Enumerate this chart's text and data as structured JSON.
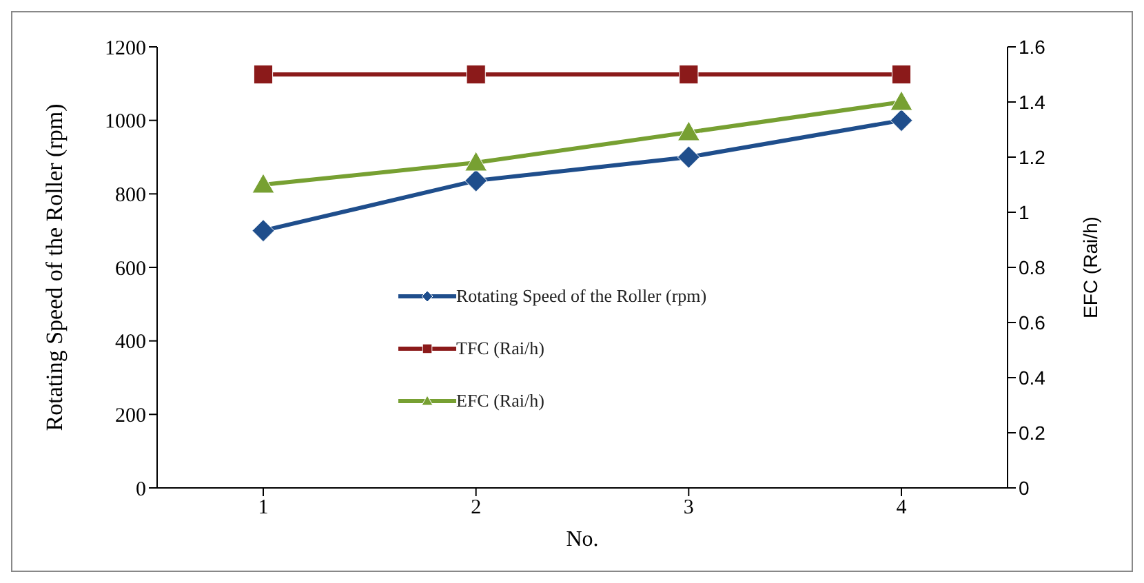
{
  "chart_data": {
    "type": "line",
    "xlabel": "No.",
    "ylabel": "Rotating Speed of the Roller (rpm)",
    "y2label": "EFC (Rai/h)",
    "categories": [
      "1",
      "2",
      "3",
      "4"
    ],
    "series": [
      {
        "name": "Rotating Speed of the Roller (rpm)",
        "color": "#1f4e8c",
        "values": [
          700,
          836,
          900,
          1000
        ],
        "marker": "diamond"
      },
      {
        "name": "TFC (Rai/h)",
        "color": "#8b1a1a",
        "values": [
          1.5,
          1.5,
          1.5,
          1.5
        ],
        "marker": "square",
        "axis": "y2"
      },
      {
        "name": "EFC (Rai/h)",
        "color": "#77a032",
        "values": [
          1.1,
          1.18,
          1.29,
          1.4
        ],
        "marker": "triangle",
        "axis": "y2"
      }
    ],
    "ylim": [
      0,
      1200
    ],
    "yticks": [
      0,
      200,
      400,
      600,
      800,
      1000,
      1200
    ],
    "y2lim": [
      0,
      1.6
    ],
    "y2ticks": [
      0,
      0.2,
      0.4,
      0.6,
      0.8,
      1,
      1.2,
      1.4,
      1.6
    ],
    "legend": "center"
  }
}
